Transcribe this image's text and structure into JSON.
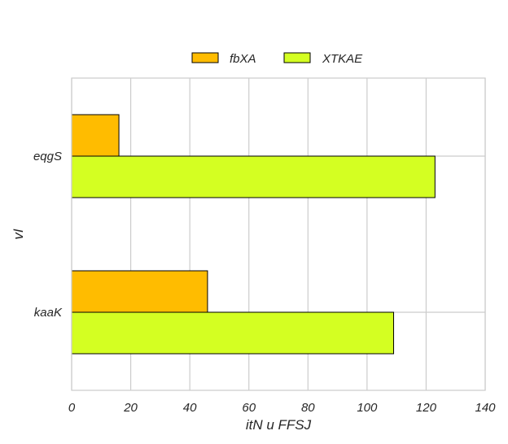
{
  "chart_data": {
    "type": "bar",
    "orientation": "horizontal",
    "categories": [
      "eqgS",
      "kaaK"
    ],
    "series": [
      {
        "name": "fbXA",
        "values": [
          16,
          46
        ],
        "color": "#FFBC00"
      },
      {
        "name": "XTKAE",
        "values": [
          123,
          109
        ],
        "color": "#D4FF22"
      }
    ],
    "xlabel": "itN u FFSJ",
    "ylabel": "vI",
    "xlim": [
      0,
      140
    ],
    "xticks": [
      "0",
      "20",
      "40",
      "60",
      "80",
      "100",
      "120",
      "140"
    ],
    "grid": true,
    "legend": "top-center"
  }
}
